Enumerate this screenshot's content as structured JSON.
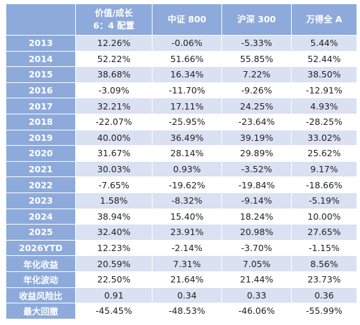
{
  "table": {
    "columns": [
      [
        "价值/成长",
        "6：4 配置"
      ],
      "中证 800",
      "沪深 300",
      "万得全 A"
    ],
    "rows": [
      [
        "2013",
        "12.26%",
        "-0.06%",
        "-5.33%",
        "5.44%"
      ],
      [
        "2014",
        "52.22%",
        "51.66%",
        "55.85%",
        "52.44%"
      ],
      [
        "2015",
        "38.68%",
        "16.34%",
        "7.22%",
        "38.50%"
      ],
      [
        "2016",
        "-3.09%",
        "-11.70%",
        "-9.26%",
        "-12.91%"
      ],
      [
        "2017",
        "32.21%",
        "17.11%",
        "24.25%",
        "4.93%"
      ],
      [
        "2018",
        "-22.07%",
        "-25.95%",
        "-23.64%",
        "-28.25%"
      ],
      [
        "2019",
        "40.00%",
        "36.49%",
        "39.19%",
        "33.02%"
      ],
      [
        "2020",
        "31.67%",
        "28.14%",
        "29.89%",
        "25.62%"
      ],
      [
        "2021",
        "30.03%",
        "0.93%",
        "-3.52%",
        "9.17%"
      ],
      [
        "2022",
        "-7.65%",
        "-19.62%",
        "-19.84%",
        "-18.66%"
      ],
      [
        "2023",
        "1.58%",
        "-8.32%",
        "-9.14%",
        "-5.19%"
      ],
      [
        "2024",
        "38.94%",
        "15.40%",
        "18.24%",
        "10.00%"
      ],
      [
        "2025",
        "32.40%",
        "23.91%",
        "20.98%",
        "27.65%"
      ],
      [
        "2026YTD",
        "12.23%",
        "-2.14%",
        "-3.70%",
        "-1.15%"
      ],
      [
        "年化收益",
        "20.59%",
        "7.31%",
        "7.05%",
        "8.56%"
      ],
      [
        "年化波动",
        "22.50%",
        "21.64%",
        "21.44%",
        "23.73%"
      ],
      [
        "收益风险比",
        "0.91",
        "0.34",
        "0.33",
        "0.36"
      ],
      [
        "最大回撤",
        "-45.45%",
        "-48.53%",
        "-46.06%",
        "-55.99%"
      ]
    ]
  }
}
